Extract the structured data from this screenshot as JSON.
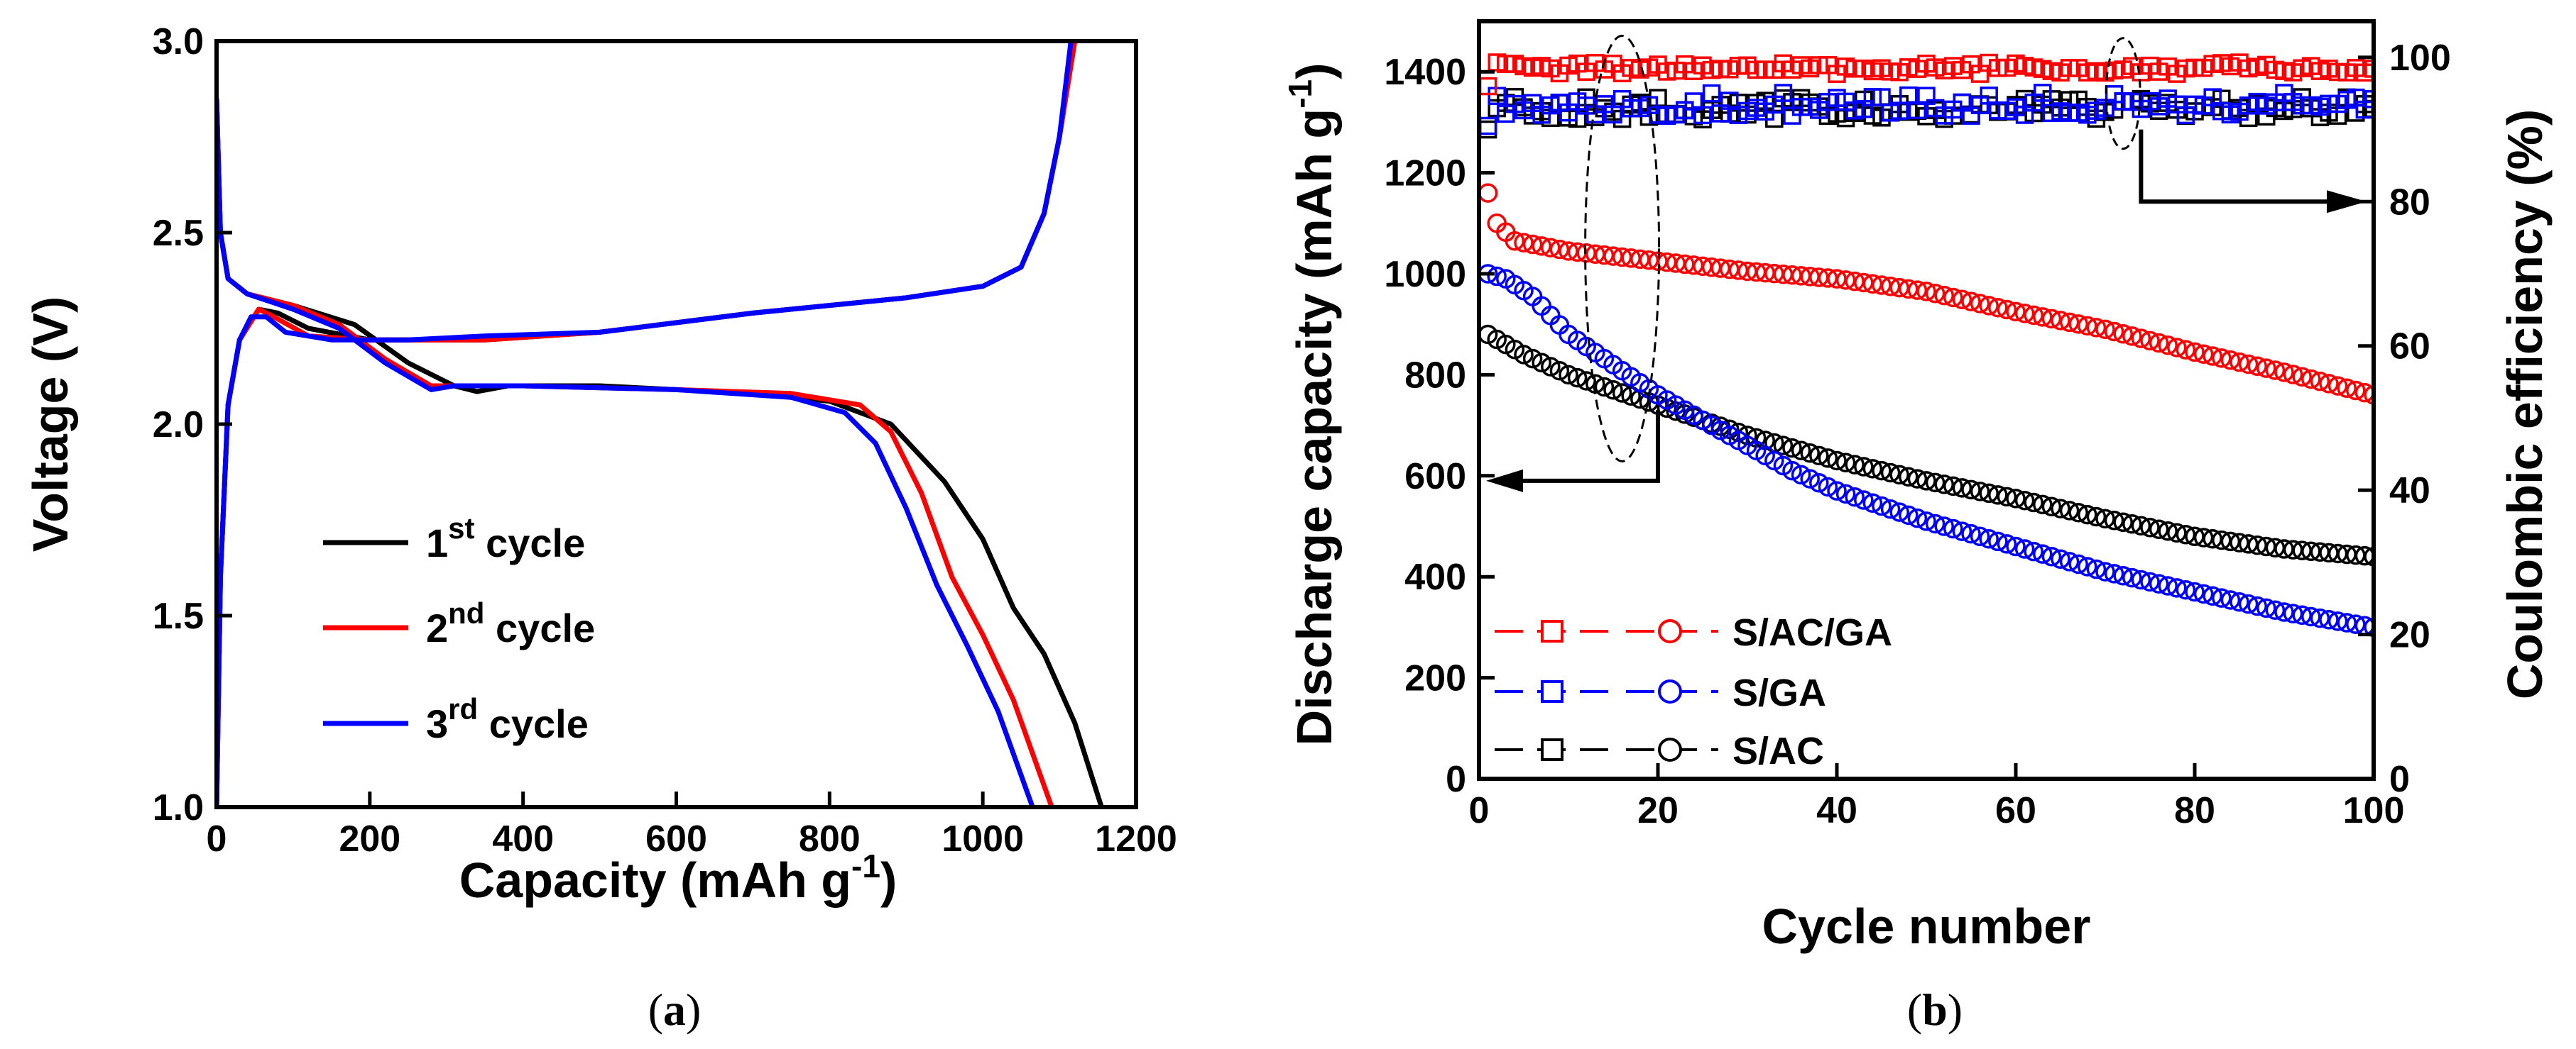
{
  "chart_data": [
    {
      "type": "line",
      "panel_label": "(a)",
      "panel_letter": "a",
      "xlabel": "Capacity (mAh g",
      "xlabel_sup": "-1",
      "xlabel_end": ")",
      "ylabel": "Voltage (V)",
      "xlim": [
        0,
        1200
      ],
      "ylim": [
        1.0,
        3.0
      ],
      "xticks": [
        0,
        200,
        400,
        600,
        800,
        1000,
        1200
      ],
      "yticks": [
        1.0,
        1.5,
        2.0,
        2.5,
        3.0
      ],
      "ytick_labels": [
        "1.0",
        "1.5",
        "2.0",
        "2.5",
        "3.0"
      ],
      "legend_position": "bottom-left",
      "series": [
        {
          "name": "1st cycle",
          "label_base": "1",
          "label_sup": "st",
          "label_rest": " cycle",
          "color": "#000000",
          "discharge": [
            [
              0,
              2.85
            ],
            [
              5,
              2.5
            ],
            [
              15,
              2.38
            ],
            [
              40,
              2.34
            ],
            [
              100,
              2.31
            ],
            [
              180,
              2.26
            ],
            [
              250,
              2.16
            ],
            [
              310,
              2.1
            ],
            [
              340,
              2.085
            ],
            [
              380,
              2.1
            ],
            [
              500,
              2.1
            ],
            [
              700,
              2.08
            ],
            [
              800,
              2.06
            ],
            [
              880,
              2.0
            ],
            [
              950,
              1.85
            ],
            [
              1000,
              1.7
            ],
            [
              1040,
              1.52
            ],
            [
              1080,
              1.4
            ],
            [
              1120,
              1.22
            ],
            [
              1155,
              1.0
            ]
          ],
          "charge": [
            [
              0,
              1.0
            ],
            [
              5,
              1.6
            ],
            [
              15,
              2.05
            ],
            [
              30,
              2.22
            ],
            [
              55,
              2.3
            ],
            [
              80,
              2.29
            ],
            [
              120,
              2.25
            ],
            [
              200,
              2.22
            ],
            [
              350,
              2.22
            ],
            [
              500,
              2.24
            ],
            [
              700,
              2.29
            ],
            [
              900,
              2.33
            ],
            [
              1000,
              2.36
            ],
            [
              1050,
              2.41
            ],
            [
              1080,
              2.55
            ],
            [
              1100,
              2.75
            ],
            [
              1120,
              3.0
            ]
          ]
        },
        {
          "name": "2nd cycle",
          "label_base": "2",
          "label_sup": "nd",
          "label_rest": " cycle",
          "color": "#ff0000",
          "discharge": [
            [
              0,
              2.85
            ],
            [
              5,
              2.5
            ],
            [
              15,
              2.38
            ],
            [
              40,
              2.34
            ],
            [
              100,
              2.31
            ],
            [
              160,
              2.26
            ],
            [
              220,
              2.17
            ],
            [
              280,
              2.1
            ],
            [
              310,
              2.1
            ],
            [
              400,
              2.1
            ],
            [
              600,
              2.09
            ],
            [
              750,
              2.08
            ],
            [
              840,
              2.05
            ],
            [
              880,
              1.98
            ],
            [
              920,
              1.82
            ],
            [
              960,
              1.6
            ],
            [
              1000,
              1.45
            ],
            [
              1040,
              1.28
            ],
            [
              1090,
              1.0
            ]
          ],
          "charge": [
            [
              0,
              1.0
            ],
            [
              5,
              1.6
            ],
            [
              15,
              2.05
            ],
            [
              30,
              2.22
            ],
            [
              55,
              2.3
            ],
            [
              75,
              2.28
            ],
            [
              120,
              2.23
            ],
            [
              200,
              2.22
            ],
            [
              350,
              2.22
            ],
            [
              500,
              2.24
            ],
            [
              700,
              2.29
            ],
            [
              900,
              2.33
            ],
            [
              1000,
              2.36
            ],
            [
              1050,
              2.41
            ],
            [
              1080,
              2.55
            ],
            [
              1100,
              2.75
            ],
            [
              1120,
              3.0
            ]
          ]
        },
        {
          "name": "3rd cycle",
          "label_base": "3",
          "label_sup": "rd",
          "label_rest": " cycle",
          "color": "#0000ff",
          "discharge": [
            [
              0,
              2.85
            ],
            [
              5,
              2.5
            ],
            [
              15,
              2.38
            ],
            [
              40,
              2.34
            ],
            [
              100,
              2.3
            ],
            [
              160,
              2.25
            ],
            [
              220,
              2.16
            ],
            [
              280,
              2.09
            ],
            [
              310,
              2.1
            ],
            [
              400,
              2.1
            ],
            [
              600,
              2.09
            ],
            [
              750,
              2.07
            ],
            [
              820,
              2.03
            ],
            [
              860,
              1.95
            ],
            [
              900,
              1.78
            ],
            [
              940,
              1.58
            ],
            [
              980,
              1.42
            ],
            [
              1020,
              1.25
            ],
            [
              1065,
              1.0
            ]
          ],
          "charge": [
            [
              0,
              1.0
            ],
            [
              5,
              1.6
            ],
            [
              15,
              2.05
            ],
            [
              30,
              2.22
            ],
            [
              45,
              2.28
            ],
            [
              65,
              2.28
            ],
            [
              90,
              2.24
            ],
            [
              150,
              2.22
            ],
            [
              250,
              2.22
            ],
            [
              350,
              2.23
            ],
            [
              500,
              2.24
            ],
            [
              700,
              2.29
            ],
            [
              900,
              2.33
            ],
            [
              1000,
              2.36
            ],
            [
              1050,
              2.41
            ],
            [
              1080,
              2.55
            ],
            [
              1100,
              2.75
            ],
            [
              1115,
              3.0
            ]
          ]
        }
      ]
    },
    {
      "type": "scatter",
      "panel_label": "(b)",
      "panel_letter": "b",
      "xlabel": "Cycle number",
      "ylabel": "Discharge capacity (mAh g",
      "ylabel_sup": "-1",
      "ylabel_end": ")",
      "y2label": "Coulombic efficiency (%)",
      "xlim": [
        0,
        100
      ],
      "ylim": [
        0,
        1500
      ],
      "y2lim": [
        0,
        105
      ],
      "xticks": [
        0,
        20,
        40,
        60,
        80,
        100
      ],
      "yticks": [
        0,
        200,
        400,
        600,
        800,
        1000,
        1200,
        1400
      ],
      "y2ticks": [
        0,
        20,
        40,
        60,
        80,
        100
      ],
      "legend_position": "bottom-left",
      "series": [
        {
          "name": "S/AC/GA",
          "color": "#ff0000",
          "capacity_start": 1160,
          "capacity_end": 760,
          "efficiency_mean": 98.5
        },
        {
          "name": "S/GA",
          "color": "#0000ff",
          "capacity_start": 1000,
          "capacity_end": 300,
          "efficiency_mean": 93.5
        },
        {
          "name": "S/AC",
          "color": "#000000",
          "capacity_start": 880,
          "capacity_end": 440,
          "efficiency_mean": 93.0
        }
      ],
      "capacity_anchors": {
        "S/AC/GA": [
          [
            1,
            1160
          ],
          [
            2,
            1100
          ],
          [
            4,
            1065
          ],
          [
            10,
            1045
          ],
          [
            20,
            1025
          ],
          [
            30,
            1005
          ],
          [
            40,
            990
          ],
          [
            50,
            965
          ],
          [
            60,
            925
          ],
          [
            70,
            890
          ],
          [
            80,
            845
          ],
          [
            90,
            805
          ],
          [
            100,
            760
          ]
        ],
        "S/GA": [
          [
            1,
            1000
          ],
          [
            3,
            990
          ],
          [
            6,
            955
          ],
          [
            10,
            880
          ],
          [
            15,
            820
          ],
          [
            20,
            760
          ],
          [
            25,
            710
          ],
          [
            30,
            660
          ],
          [
            35,
            610
          ],
          [
            40,
            570
          ],
          [
            50,
            510
          ],
          [
            60,
            460
          ],
          [
            70,
            410
          ],
          [
            80,
            370
          ],
          [
            90,
            330
          ],
          [
            100,
            300
          ]
        ],
        "S/AC": [
          [
            1,
            880
          ],
          [
            5,
            840
          ],
          [
            10,
            800
          ],
          [
            20,
            740
          ],
          [
            30,
            680
          ],
          [
            40,
            630
          ],
          [
            50,
            590
          ],
          [
            60,
            555
          ],
          [
            70,
            515
          ],
          [
            80,
            480
          ],
          [
            90,
            455
          ],
          [
            100,
            440
          ]
        ]
      },
      "annotation_arrows": [
        {
          "points_to": "left axis",
          "from_cycle": 20
        },
        {
          "points_to": "right axis",
          "from_cycle": 74
        }
      ]
    }
  ]
}
